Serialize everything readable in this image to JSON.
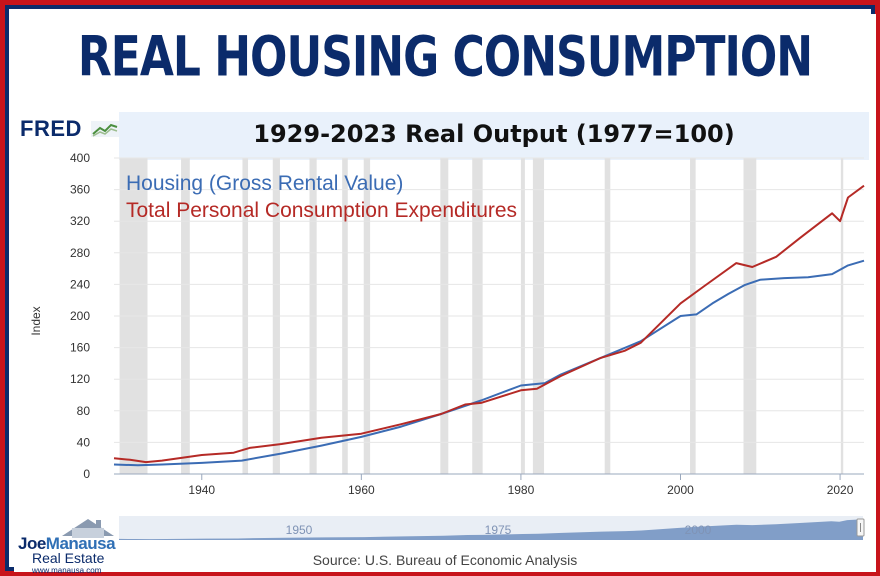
{
  "banner": {
    "title": "REAL HOUSING CONSUMPTION"
  },
  "header": {
    "fred_logo": "FRED",
    "chart_title": "1929-2023 Real Output (1977=100)"
  },
  "source": "Source: U.S. Bureau of Economic Analysis",
  "logo": {
    "name_part1": "Joe",
    "name_part2": "Manausa",
    "subtitle": "Real Estate",
    "url": "www.manausa.com"
  },
  "colors": {
    "housing": "#3b6cb4",
    "pce": "#b52a26",
    "recession": "#e1e1e1",
    "title": "#0b2b6b",
    "frame_red": "#c8141b"
  },
  "navigator": {
    "labels": [
      "1950",
      "1975",
      "2000"
    ]
  },
  "chart_data": {
    "type": "line",
    "title": "1929-2023 Real Output (1977=100)",
    "xlabel": "",
    "ylabel": "Index",
    "xlim": [
      1929,
      2023
    ],
    "ylim": [
      0,
      400
    ],
    "yticks": [
      0,
      40,
      80,
      120,
      160,
      200,
      240,
      280,
      320,
      360,
      400
    ],
    "xticks": [
      1940,
      1960,
      1980,
      2000,
      2020
    ],
    "grid": "horizontal",
    "legend": "top-left",
    "recessions": [
      [
        1929.7,
        1933.2
      ],
      [
        1937.4,
        1938.5
      ],
      [
        1945.1,
        1945.8
      ],
      [
        1948.9,
        1949.8
      ],
      [
        1953.5,
        1954.4
      ],
      [
        1957.6,
        1958.3
      ],
      [
        1960.3,
        1961.1
      ],
      [
        1969.9,
        1970.9
      ],
      [
        1973.9,
        1975.2
      ],
      [
        1980.0,
        1980.5
      ],
      [
        1981.5,
        1982.9
      ],
      [
        1990.5,
        1991.2
      ],
      [
        2001.2,
        2001.9
      ],
      [
        2007.9,
        2009.5
      ],
      [
        2020.1,
        2020.4
      ]
    ],
    "series": [
      {
        "name": "Housing (Gross Rental Value)",
        "color": "#3b6cb4",
        "x": [
          1929,
          1932,
          1935,
          1940,
          1945,
          1950,
          1955,
          1960,
          1965,
          1970,
          1975,
          1980,
          1983,
          1985,
          1990,
          1995,
          2000,
          2002,
          2004,
          2006,
          2008,
          2010,
          2013,
          2016,
          2019,
          2021,
          2023
        ],
        "y": [
          12,
          11,
          12,
          14,
          17,
          26,
          36,
          47,
          60,
          76,
          93,
          112,
          115,
          126,
          147,
          168,
          200,
          202,
          216,
          228,
          239,
          246,
          248,
          249,
          253,
          264,
          270
        ]
      },
      {
        "name": "Total Personal Consumption Expenditures",
        "color": "#b52a26",
        "x": [
          1929,
          1931,
          1933,
          1935,
          1940,
          1944,
          1946,
          1950,
          1955,
          1960,
          1965,
          1970,
          1973,
          1975,
          1980,
          1982,
          1985,
          1990,
          1993,
          1995,
          2000,
          2003,
          2007,
          2009,
          2012,
          2015,
          2019,
          2020,
          2021,
          2023
        ],
        "y": [
          20,
          18,
          15,
          17,
          24,
          27,
          33,
          38,
          46,
          51,
          63,
          76,
          88,
          90,
          106,
          108,
          124,
          147,
          156,
          166,
          216,
          238,
          267,
          262,
          275,
          299,
          330,
          320,
          350,
          365
        ]
      }
    ]
  }
}
